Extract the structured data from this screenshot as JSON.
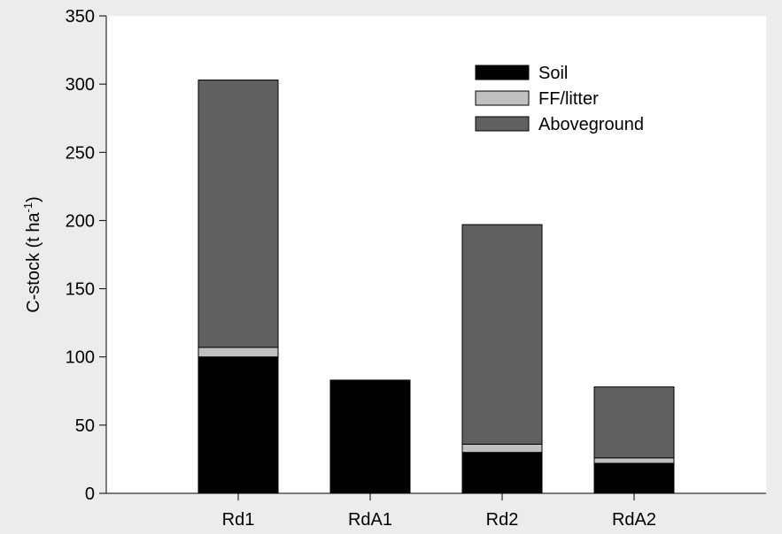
{
  "chart_data": {
    "type": "bar",
    "stacked": true,
    "categories": [
      "Rd1",
      "RdA1",
      "Rd2",
      "RdA2"
    ],
    "series": [
      {
        "name": "Soil",
        "color": "#000000",
        "values": [
          100,
          83,
          30,
          22
        ]
      },
      {
        "name": "FF/litter",
        "color": "#c0c0c0",
        "values": [
          7,
          0,
          6,
          4
        ]
      },
      {
        "name": "Aboveground",
        "color": "#606060",
        "values": [
          196,
          0,
          161,
          52
        ]
      }
    ],
    "ylabel_text": "C-stock (t ha",
    "ylabel_sup": "-1",
    "ylabel_close": ")",
    "ylim": [
      0,
      350
    ],
    "yticks": [
      0,
      50,
      100,
      150,
      200,
      250,
      300,
      350
    ],
    "grid": false,
    "legend_position": "top-right"
  }
}
